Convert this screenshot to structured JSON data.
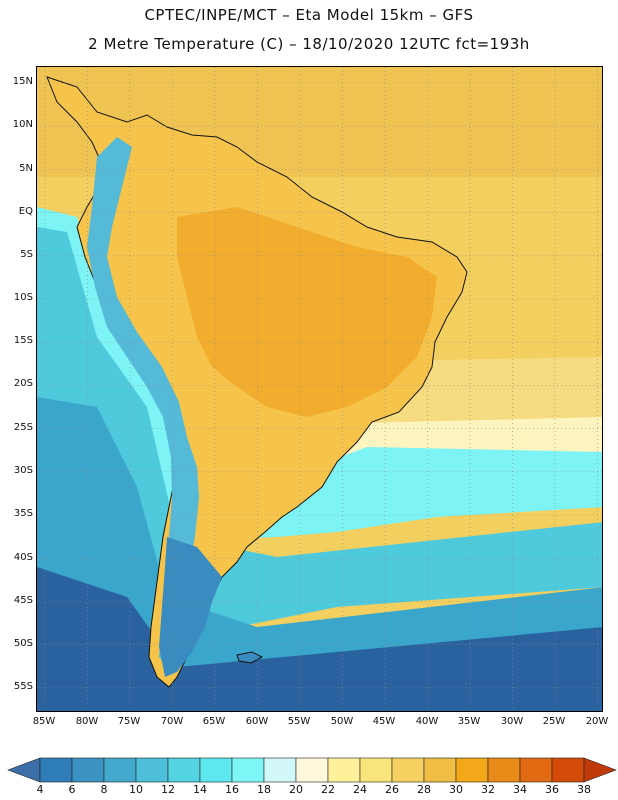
{
  "title_line1": "CPTEC/INPE/MCT –  Eta Model 15km – GFS",
  "title_line2": "2 Metre Temperature (C) – 18/10/2020 12UTC fct=193h",
  "latitude_labels": [
    "15N",
    "10N",
    "5N",
    "EQ",
    "5S",
    "10S",
    "15S",
    "20S",
    "25S",
    "30S",
    "35S",
    "40S",
    "45S",
    "50S",
    "55S"
  ],
  "longitude_labels": [
    "85W",
    "80W",
    "75W",
    "70W",
    "65W",
    "60W",
    "55W",
    "50W",
    "45W",
    "40W",
    "35W",
    "30W",
    "25W",
    "20W"
  ],
  "colorbar": {
    "labels": [
      "4",
      "6",
      "8",
      "10",
      "12",
      "14",
      "16",
      "18",
      "20",
      "22",
      "24",
      "26",
      "28",
      "30",
      "32",
      "34",
      "36",
      "38"
    ],
    "colors": [
      "#3c6ea8",
      "#2f7db8",
      "#3a93c3",
      "#44a9cf",
      "#4ebfd9",
      "#54d4e3",
      "#5de7ee",
      "#7ef5f7",
      "#d2f8fa",
      "#fff8dc",
      "#fdf29a",
      "#fae57a",
      "#f6d060",
      "#f0bd45",
      "#f2a818",
      "#ea8a18",
      "#e26a12",
      "#d44a08",
      "#bf3a08",
      "#2e64a4"
    ]
  },
  "map_colors": {
    "ocean_warm": "#f2cf5e",
    "ocean_warm_far": "#f0c452",
    "ocean_mid": "#fdf4c0",
    "ocean_cool1": "#7ef3f5",
    "ocean_cool2": "#4fc9dc",
    "ocean_cool3": "#3aa6cb",
    "ocean_cold": "#2a62a0",
    "land_hot": "#f2ad2e",
    "land_warm": "#f6c44a",
    "andes": "#55b9d8",
    "patagonia": "#3a8cc0",
    "coast_line": "#111111"
  }
}
